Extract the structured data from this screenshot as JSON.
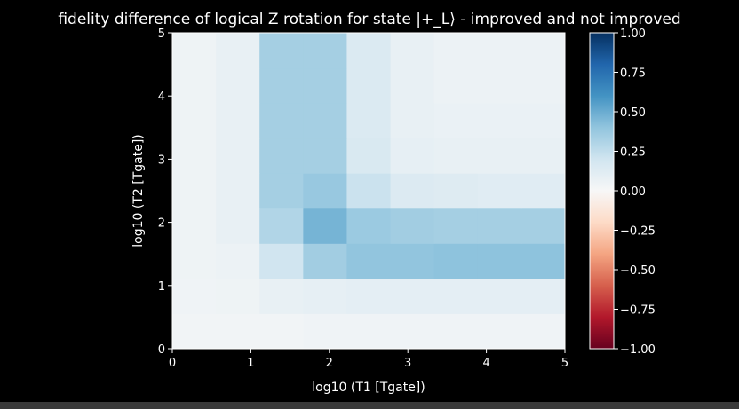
{
  "chart_data": {
    "type": "heatmap",
    "title": "fidelity difference of logical Z rotation for state |+_L⟩ - improved and not improved",
    "xlabel": "log10 (T1 [Tgate])",
    "ylabel": "log10 (T2 [Tgate])",
    "xlim": [
      0,
      5
    ],
    "ylim": [
      0,
      5
    ],
    "xticks": [
      0,
      1,
      2,
      3,
      4,
      5
    ],
    "yticks": [
      0,
      1,
      2,
      3,
      4,
      5
    ],
    "x_edges": [
      0,
      0.556,
      1.111,
      1.667,
      2.222,
      2.778,
      3.333,
      3.889,
      4.444,
      5
    ],
    "y_edges": [
      0,
      0.556,
      1.111,
      1.667,
      2.222,
      2.778,
      3.333,
      3.889,
      4.444,
      5
    ],
    "values": [
      [
        0.03,
        0.03,
        0.03,
        0.04,
        0.04,
        0.04,
        0.04,
        0.04,
        0.04
      ],
      [
        0.04,
        0.05,
        0.08,
        0.09,
        0.1,
        0.1,
        0.1,
        0.1,
        0.1
      ],
      [
        0.05,
        0.06,
        0.2,
        0.35,
        0.4,
        0.4,
        0.41,
        0.41,
        0.41
      ],
      [
        0.05,
        0.08,
        0.3,
        0.47,
        0.37,
        0.35,
        0.34,
        0.34,
        0.34
      ],
      [
        0.05,
        0.08,
        0.34,
        0.38,
        0.22,
        0.14,
        0.13,
        0.12,
        0.12
      ],
      [
        0.05,
        0.08,
        0.34,
        0.34,
        0.16,
        0.09,
        0.08,
        0.08,
        0.08
      ],
      [
        0.05,
        0.08,
        0.34,
        0.34,
        0.15,
        0.08,
        0.07,
        0.07,
        0.07
      ],
      [
        0.05,
        0.08,
        0.34,
        0.34,
        0.15,
        0.08,
        0.06,
        0.06,
        0.06
      ],
      [
        0.05,
        0.08,
        0.34,
        0.34,
        0.15,
        0.08,
        0.06,
        0.06,
        0.06
      ]
    ],
    "colorbar": {
      "vmin": -1,
      "vmax": 1,
      "ticks": [
        "1.00",
        "0.75",
        "0.50",
        "0.25",
        "0.00",
        "−0.25",
        "−0.50",
        "−0.75",
        "−1.00"
      ],
      "colormap": "RdBu"
    },
    "grid": false
  }
}
